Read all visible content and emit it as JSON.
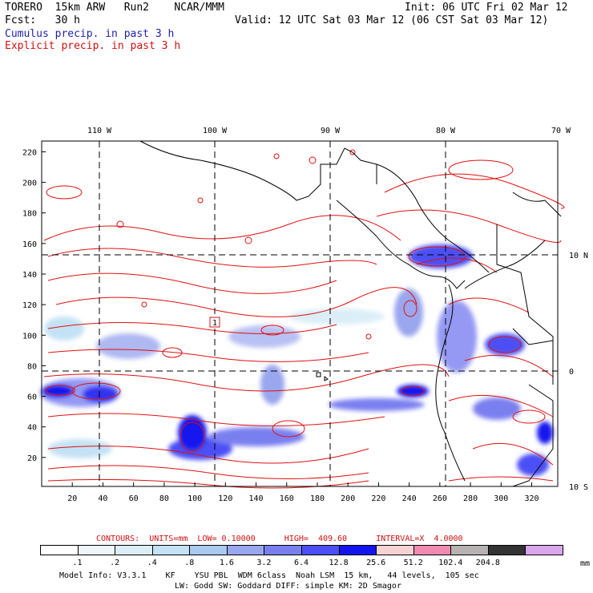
{
  "header": {
    "line1_left": "TORERO  15km ARW   Run2    NCAR/MMM",
    "line1_right": "Init: 06 UTC Fri 02 Mar 12",
    "line2_left": "Fcst:   30 h",
    "line2_right": "Valid: 12 UTC Sat 03 Mar 12 (06 CST Sat 03 Mar 12)",
    "line3": "Cumulus precip. in past 3 h",
    "line4": "Explicit precip. in past 3 h"
  },
  "colors": {
    "cumulus_text": "#1f1fb0",
    "explicit_text": "#d01010",
    "contour": "#e01010",
    "coast": "#000000"
  },
  "map": {
    "lon_labels": [
      "110 W",
      "100 W",
      "90 W",
      "80 W",
      "70 W"
    ],
    "lat_labels": [
      "10 N",
      "0",
      "10 S"
    ],
    "y_ticks": [
      "220",
      "200",
      "180",
      "160",
      "140",
      "120",
      "100",
      "80",
      "60",
      "40",
      "20"
    ],
    "x_ticks": [
      "20",
      "40",
      "60",
      "80",
      "100",
      "120",
      "140",
      "160",
      "180",
      "200",
      "220",
      "240",
      "260",
      "280",
      "300",
      "320"
    ],
    "marker_label": "1"
  },
  "contours_text": "CONTOURS:  UNITS=mm  LOW= 0.10000      HIGH=  409.60      INTERVAL=X  4.0000",
  "colorbar": {
    "unit": "mm",
    "labels": [
      ".1",
      ".2",
      ".4",
      ".8",
      "1.6",
      "3.2",
      "6.4",
      "12.8",
      "25.6",
      "51.2",
      "102.4",
      "204.8"
    ],
    "colors": [
      "#ffffff",
      "#eef6fb",
      "#dbeef8",
      "#c4e2f5",
      "#a9c9ef",
      "#9aa6ee",
      "#7a7ff0",
      "#4b4ff5",
      "#1414ef",
      "#f6d2d4",
      "#f08ab0",
      "#b7b3b3",
      "#333333",
      "#d9a6ee"
    ]
  },
  "footer": {
    "line1": "Model Info: V3.3.1    KF    YSU PBL  WDM 6class  Noah LSM  15 km,   44 levels,  105 sec",
    "line2": "LW: Godd SW: Goddard DIFF: simple KM: 2D Smagor"
  }
}
